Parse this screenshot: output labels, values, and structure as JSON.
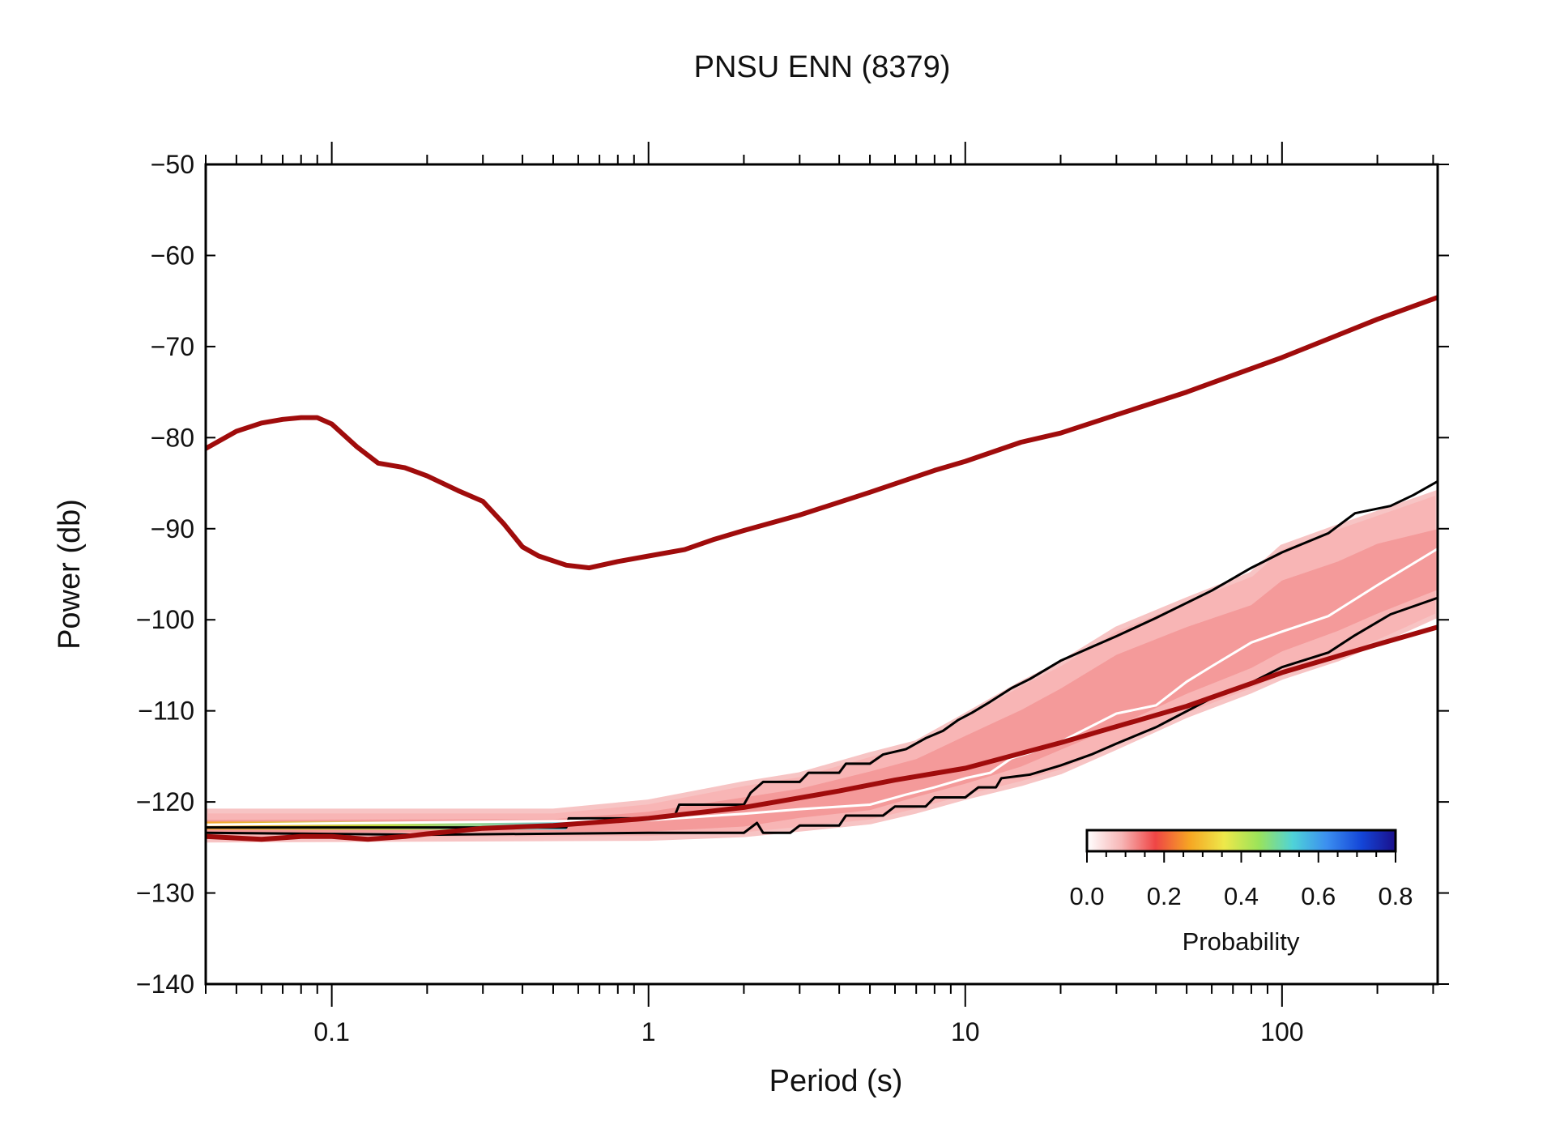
{
  "chart_data": {
    "type": "line",
    "title": "PNSU ENN (8379)",
    "xlabel": "Period (s)",
    "ylabel": "Power (db)",
    "x_scale": "log",
    "xlim": [
      0.04,
      310
    ],
    "ylim": [
      -140,
      -50
    ],
    "x_ticks": [
      {
        "value": 0.1,
        "label": "0.1"
      },
      {
        "value": 1,
        "label": "1"
      },
      {
        "value": 10,
        "label": "10"
      },
      {
        "value": 100,
        "label": "100"
      }
    ],
    "y_ticks": [
      {
        "value": -50,
        "label": "−50"
      },
      {
        "value": -60,
        "label": "−60"
      },
      {
        "value": -70,
        "label": "−70"
      },
      {
        "value": -80,
        "label": "−80"
      },
      {
        "value": -90,
        "label": "−90"
      },
      {
        "value": -100,
        "label": "−100"
      },
      {
        "value": -110,
        "label": "−110"
      },
      {
        "value": -120,
        "label": "−120"
      },
      {
        "value": -130,
        "label": "−130"
      },
      {
        "value": -140,
        "label": "−140"
      }
    ],
    "grid": false,
    "series": [
      {
        "key": "high_noise_model",
        "color": "#a00c0c",
        "points": [
          [
            0.04,
            -81.2
          ],
          [
            0.05,
            -79.3
          ],
          [
            0.06,
            -78.4
          ],
          [
            0.07,
            -78.0
          ],
          [
            0.08,
            -77.8
          ],
          [
            0.09,
            -77.8
          ],
          [
            0.1,
            -78.5
          ],
          [
            0.12,
            -81.0
          ],
          [
            0.14,
            -82.8
          ],
          [
            0.17,
            -83.3
          ],
          [
            0.2,
            -84.2
          ],
          [
            0.25,
            -85.8
          ],
          [
            0.3,
            -87.0
          ],
          [
            0.35,
            -89.5
          ],
          [
            0.4,
            -92.0
          ],
          [
            0.45,
            -93.0
          ],
          [
            0.55,
            -94.0
          ],
          [
            0.65,
            -94.3
          ],
          [
            0.8,
            -93.6
          ],
          [
            1.0,
            -93.0
          ],
          [
            1.3,
            -92.3
          ],
          [
            1.6,
            -91.2
          ],
          [
            2.0,
            -90.2
          ],
          [
            3.0,
            -88.5
          ],
          [
            5.0,
            -86.0
          ],
          [
            8.0,
            -83.6
          ],
          [
            10,
            -82.6
          ],
          [
            15,
            -80.5
          ],
          [
            20,
            -79.5
          ],
          [
            30,
            -77.5
          ],
          [
            50,
            -75.0
          ],
          [
            100,
            -71.2
          ],
          [
            200,
            -67.0
          ],
          [
            310,
            -64.6
          ]
        ]
      },
      {
        "key": "low_noise_model",
        "color": "#a00c0c",
        "points": [
          [
            0.04,
            -123.8
          ],
          [
            0.06,
            -124.1
          ],
          [
            0.08,
            -123.8
          ],
          [
            0.1,
            -123.8
          ],
          [
            0.13,
            -124.1
          ],
          [
            0.17,
            -123.8
          ],
          [
            0.2,
            -123.5
          ],
          [
            0.3,
            -122.9
          ],
          [
            0.5,
            -122.6
          ],
          [
            1.0,
            -121.8
          ],
          [
            2.0,
            -120.6
          ],
          [
            4.0,
            -118.8
          ],
          [
            6.0,
            -117.6
          ],
          [
            10,
            -116.3
          ],
          [
            20,
            -113.5
          ],
          [
            50,
            -109.5
          ],
          [
            100,
            -105.8
          ],
          [
            200,
            -102.7
          ],
          [
            310,
            -100.8
          ]
        ]
      },
      {
        "key": "percentile_upper",
        "color": "#000000",
        "points": [
          [
            0.04,
            -122.8
          ],
          [
            0.55,
            -122.8
          ],
          [
            0.56,
            -121.8
          ],
          [
            1.2,
            -121.8
          ],
          [
            1.25,
            -120.3
          ],
          [
            2.0,
            -120.3
          ],
          [
            2.1,
            -119.0
          ],
          [
            2.3,
            -117.8
          ],
          [
            3.0,
            -117.8
          ],
          [
            3.2,
            -116.8
          ],
          [
            4.0,
            -116.8
          ],
          [
            4.2,
            -115.8
          ],
          [
            5.0,
            -115.8
          ],
          [
            5.5,
            -114.8
          ],
          [
            6.5,
            -114.2
          ],
          [
            7.5,
            -113.0
          ],
          [
            8.5,
            -112.2
          ],
          [
            9.5,
            -111.0
          ],
          [
            10.5,
            -110.2
          ],
          [
            12,
            -109.0
          ],
          [
            14,
            -107.5
          ],
          [
            16,
            -106.5
          ],
          [
            20,
            -104.5
          ],
          [
            25,
            -103.0
          ],
          [
            30,
            -101.8
          ],
          [
            40,
            -99.8
          ],
          [
            60,
            -96.8
          ],
          [
            80,
            -94.3
          ],
          [
            100,
            -92.6
          ],
          [
            140,
            -90.5
          ],
          [
            170,
            -88.3
          ],
          [
            220,
            -87.5
          ],
          [
            260,
            -86.3
          ],
          [
            310,
            -84.8
          ]
        ]
      },
      {
        "key": "percentile_lower",
        "color": "#000000",
        "points": [
          [
            0.04,
            -123.4
          ],
          [
            0.2,
            -123.6
          ],
          [
            1.0,
            -123.4
          ],
          [
            2.0,
            -123.4
          ],
          [
            2.2,
            -122.3
          ],
          [
            2.3,
            -123.4
          ],
          [
            2.8,
            -123.4
          ],
          [
            3.0,
            -122.6
          ],
          [
            4.0,
            -122.6
          ],
          [
            4.2,
            -121.5
          ],
          [
            5.5,
            -121.5
          ],
          [
            6.0,
            -120.5
          ],
          [
            7.5,
            -120.5
          ],
          [
            8.0,
            -119.5
          ],
          [
            10,
            -119.5
          ],
          [
            11,
            -118.4
          ],
          [
            12.5,
            -118.4
          ],
          [
            13,
            -117.4
          ],
          [
            16,
            -117.0
          ],
          [
            20,
            -116.0
          ],
          [
            25,
            -114.8
          ],
          [
            30,
            -113.6
          ],
          [
            40,
            -111.8
          ],
          [
            60,
            -108.6
          ],
          [
            80,
            -106.9
          ],
          [
            100,
            -105.2
          ],
          [
            140,
            -103.6
          ],
          [
            170,
            -101.7
          ],
          [
            220,
            -99.4
          ],
          [
            310,
            -97.6
          ]
        ]
      },
      {
        "key": "mode",
        "color": "#ffffff",
        "points": [
          [
            0.04,
            -122.5
          ],
          [
            1.0,
            -122.0
          ],
          [
            2.0,
            -121.3
          ],
          [
            3.0,
            -120.8
          ],
          [
            5.0,
            -120.3
          ],
          [
            6.5,
            -119.2
          ],
          [
            8.0,
            -118.4
          ],
          [
            10,
            -117.4
          ],
          [
            12,
            -116.8
          ],
          [
            14,
            -115.2
          ],
          [
            16,
            -114.6
          ],
          [
            20,
            -113.4
          ],
          [
            30,
            -110.3
          ],
          [
            40,
            -109.4
          ],
          [
            50,
            -106.8
          ],
          [
            60,
            -105.1
          ],
          [
            80,
            -102.5
          ],
          [
            100,
            -101.3
          ],
          [
            140,
            -99.6
          ],
          [
            200,
            -96.2
          ],
          [
            310,
            -92.2
          ]
        ]
      }
    ],
    "probability_density": {
      "band_upper": [
        [
          0.04,
          -121.0
        ],
        [
          0.5,
          -121.0
        ],
        [
          1.0,
          -120.0
        ],
        [
          2.0,
          -118.0
        ],
        [
          3.0,
          -117.0
        ],
        [
          5.0,
          -114.8
        ],
        [
          7.0,
          -113.5
        ],
        [
          10,
          -110.5
        ],
        [
          15,
          -107.0
        ],
        [
          20,
          -104.8
        ],
        [
          30,
          -101.0
        ],
        [
          50,
          -97.8
        ],
        [
          80,
          -95.0
        ],
        [
          100,
          -92.0
        ],
        [
          150,
          -89.8
        ],
        [
          200,
          -88.3
        ],
        [
          310,
          -86.0
        ]
      ],
      "band_lower": [
        [
          0.04,
          -124.2
        ],
        [
          1.0,
          -124.0
        ],
        [
          2.0,
          -123.6
        ],
        [
          3.0,
          -123.0
        ],
        [
          5.0,
          -122.2
        ],
        [
          7.0,
          -121.0
        ],
        [
          10,
          -119.5
        ],
        [
          15,
          -118.0
        ],
        [
          20,
          -116.7
        ],
        [
          30,
          -114.0
        ],
        [
          50,
          -110.5
        ],
        [
          80,
          -107.8
        ],
        [
          100,
          -106.3
        ],
        [
          150,
          -104.3
        ],
        [
          200,
          -102.5
        ],
        [
          310,
          -99.5
        ]
      ],
      "dense_strip": {
        "y": -122.6,
        "x_range": [
          0.04,
          0.55
        ],
        "colors": [
          "#f6a623",
          "#b8e23a",
          "#5fd0e8"
        ]
      }
    },
    "colorbar": {
      "label": "Probability",
      "range": [
        0.0,
        0.8
      ],
      "tick_labels": [
        "0.0",
        "0.2",
        "0.4",
        "0.6",
        "0.8"
      ],
      "colors": [
        "#ffffff",
        "#f7b6b6",
        "#ef4545",
        "#f6a623",
        "#eee84a",
        "#9be35a",
        "#4fd3d8",
        "#3b8ef0",
        "#1446d8",
        "#1a0f8a"
      ]
    }
  }
}
